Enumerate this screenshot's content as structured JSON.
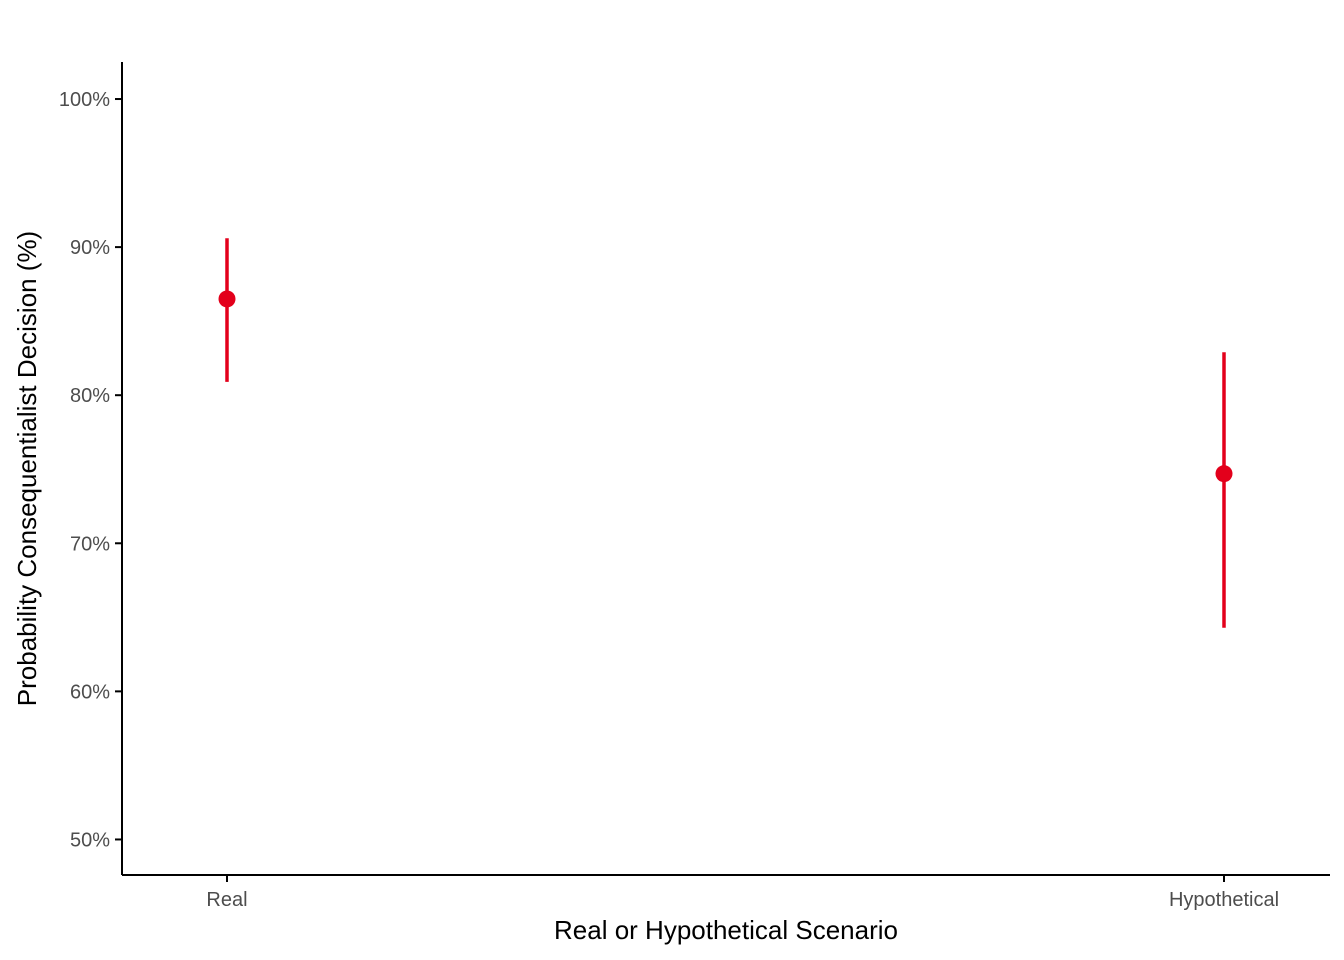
{
  "chart_data": {
    "type": "scatter",
    "title": "",
    "xlabel": "Real or Hypothetical Scenario",
    "ylabel": "Probability Consequentialist Decision (%)",
    "categories": [
      "Real",
      "Hypothetical"
    ],
    "series": [
      {
        "values": [
          86.5,
          74.7
        ],
        "lower": [
          80.9,
          64.3
        ],
        "upper": [
          90.6,
          82.9
        ]
      }
    ],
    "ylim": [
      47.6,
      102.5
    ],
    "y_ticks": [
      50,
      60,
      70,
      80,
      90,
      100
    ],
    "y_tick_labels": [
      "50%",
      "60%",
      "70%",
      "80%",
      "90%",
      "100%"
    ],
    "grid": false,
    "legend": "none",
    "colors": {
      "point": "#e3001b",
      "axis": "#000000",
      "tick_label": "#4d4d4d"
    }
  }
}
